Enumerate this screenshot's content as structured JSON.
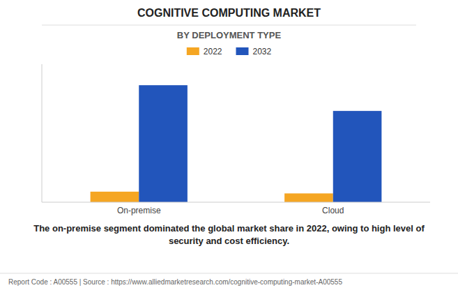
{
  "chart_data": {
    "type": "bar",
    "title": "COGNITIVE COMPUTING MARKET",
    "subtitle": "BY DEPLOYMENT TYPE",
    "categories": [
      "On-premise",
      "Cloud"
    ],
    "series": [
      {
        "name": "2022",
        "color": "#F5A623",
        "values": [
          9,
          7.5
        ]
      },
      {
        "name": "2032",
        "color": "#2255BB",
        "values": [
          100,
          78
        ]
      }
    ],
    "ylim": [
      0,
      118
    ],
    "yticks": [],
    "grid": false,
    "tick_labels": "x",
    "legend": "top",
    "annotations": [
      "The on-premise segment dominated the global market share in 2022, owing to high level of",
      "security and cost efficiency.",
      "Report Code : A00555  |  Source : https://www.alliedmarketresearch.com/cognitive-computing-market-A00555"
    ]
  }
}
